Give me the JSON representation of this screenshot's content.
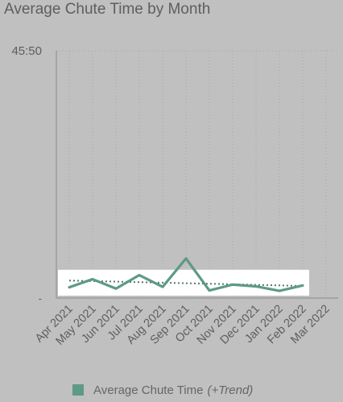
{
  "chart_data": {
    "type": "line",
    "title": "Average Chute Time by Month",
    "y_top_label": "45:50",
    "y_bottom_label": "-",
    "ylim": [
      0,
      2750
    ],
    "categories": [
      "Apr 2021",
      "May 2021",
      "Jun 2021",
      "Jul 2021",
      "Aug 2021",
      "Sep 2021",
      "Oct 2021",
      "Nov 2021",
      "Dec 2021",
      "Jan 2022",
      "Feb 2022",
      "Mar 2022"
    ],
    "series": [
      {
        "name": "Average Chute Time",
        "values": [
          120,
          210,
          105,
          255,
          125,
          440,
          85,
          150,
          130,
          80,
          140,
          null
        ]
      }
    ],
    "trend": {
      "label": "(+Trend)",
      "start": 195,
      "end": 135
    },
    "grid": true,
    "legend_position": "bottom",
    "colors": {
      "line": "#5e9a84",
      "trend": "#4f7a6c",
      "highlight": "#ffffff",
      "grid": "#a8a8a8",
      "axis": "#8a8a8a"
    }
  }
}
